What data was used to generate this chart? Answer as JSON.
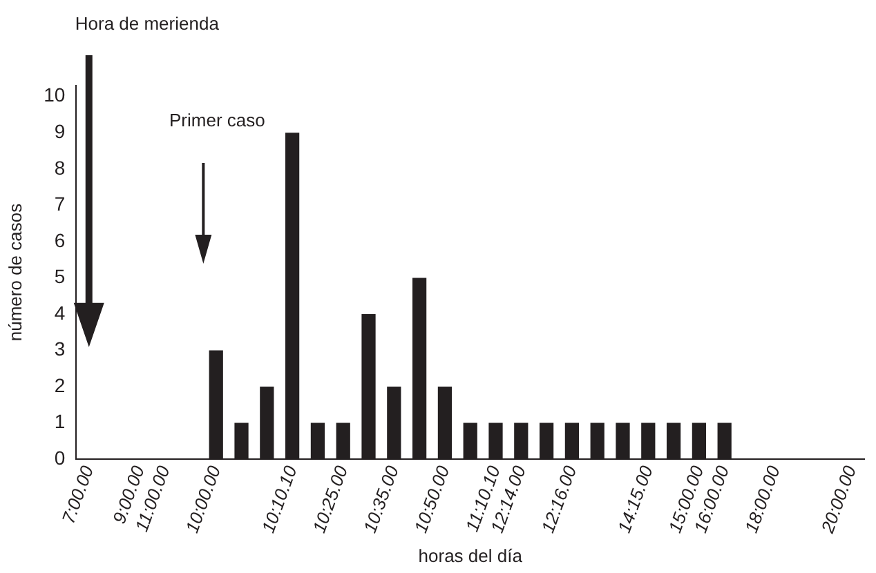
{
  "chart_data": {
    "type": "bar",
    "xlabel": "horas del día",
    "ylabel": "número de casos",
    "categories": [
      "7:00.00",
      null,
      "9:00.00",
      "11:00.00",
      null,
      "10:00.00",
      null,
      null,
      "10:10.10",
      null,
      "10:25.00",
      null,
      "10:35.00",
      null,
      "10:50.00",
      null,
      "11:10.10",
      "12:14.00",
      null,
      "12:16.00",
      null,
      null,
      "14:15.00",
      null,
      "15:00.00",
      "16:00.00",
      null,
      "18:00.00",
      null,
      null,
      "20:00.00"
    ],
    "values": [
      0,
      0,
      0,
      0,
      0,
      3,
      1,
      2,
      9,
      1,
      1,
      4,
      2,
      5,
      2,
      1,
      1,
      1,
      1,
      1,
      1,
      1,
      1,
      1,
      1,
      1,
      0,
      0,
      0,
      0,
      0
    ],
    "color": "#231f20",
    "ylim": [
      0,
      10.3
    ],
    "yticks": [
      0,
      1,
      2,
      3,
      4,
      5,
      6,
      7,
      8,
      9,
      10
    ],
    "grid": false,
    "legend": false,
    "annotations": [
      "Hora de merienda",
      "Primer caso"
    ]
  }
}
